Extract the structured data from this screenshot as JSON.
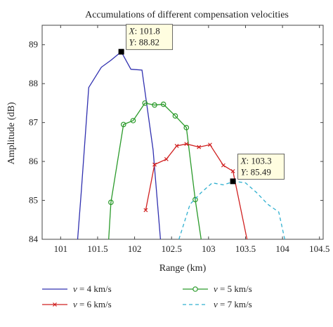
{
  "chart_data": {
    "type": "line",
    "title": "Accumulations of different compensation velocities",
    "xlabel": "Range (km)",
    "ylabel": "Amplitude (dB)",
    "xlim": [
      100.75,
      104.55
    ],
    "ylim": [
      84,
      89.5
    ],
    "xticks": [
      101,
      101.5,
      102,
      102.5,
      103,
      103.5,
      104,
      104.5
    ],
    "xtick_labels": [
      "101",
      "101.5",
      "102",
      "102.5",
      "103",
      "103.5",
      "104",
      "104.5"
    ],
    "yticks": [
      84,
      85,
      86,
      87,
      88,
      89
    ],
    "ytick_labels": [
      "84",
      "85",
      "86",
      "87",
      "88",
      "89"
    ],
    "grid": false,
    "legend_position": "bottom",
    "series": [
      {
        "name": "v = 4 km/s",
        "name_var": "v",
        "name_rest": " = 4 km/s",
        "color": "#3030b0",
        "marker": "none",
        "dash": "solid",
        "x": [
          101.23,
          101.28,
          101.38,
          101.55,
          101.68,
          101.82,
          101.95,
          102.1,
          102.25,
          102.35
        ],
        "y": [
          84.0,
          85.25,
          87.9,
          88.42,
          88.6,
          88.82,
          88.37,
          88.35,
          86.3,
          84.0
        ]
      },
      {
        "name": "v = 5 km/s",
        "name_var": "v",
        "name_rest": " = 5 km/s",
        "color": "#2a9a2a",
        "marker": "circle",
        "dash": "solid",
        "x": [
          101.65,
          101.68,
          101.85,
          101.98,
          102.14,
          102.27,
          102.39,
          102.55,
          102.7,
          102.82,
          102.9
        ],
        "y": [
          84.0,
          84.95,
          86.95,
          87.05,
          87.5,
          87.45,
          87.47,
          87.17,
          86.87,
          85.02,
          84.0
        ],
        "marker_x": [
          101.68,
          101.85,
          101.98,
          102.14,
          102.27,
          102.39,
          102.55,
          102.7,
          102.82
        ],
        "marker_y": [
          84.95,
          86.95,
          87.05,
          87.5,
          87.45,
          87.47,
          87.17,
          86.87,
          85.02
        ]
      },
      {
        "name": "v = 6 km/s",
        "name_var": "v",
        "name_rest": " = 6 km/s",
        "color": "#d02020",
        "marker": "x",
        "dash": "solid",
        "x": [
          102.15,
          102.27,
          102.43,
          102.57,
          102.7,
          102.87,
          103.02,
          103.2,
          103.33,
          103.52
        ],
        "y": [
          84.75,
          85.92,
          86.06,
          86.4,
          86.45,
          86.37,
          86.43,
          85.9,
          85.75,
          84.0
        ],
        "marker_x": [
          102.15,
          102.27,
          102.43,
          102.57,
          102.7,
          102.87,
          103.02,
          103.2,
          103.33
        ],
        "marker_y": [
          84.75,
          85.92,
          86.06,
          86.4,
          86.45,
          86.37,
          86.43,
          85.9,
          85.75
        ]
      },
      {
        "name": "v = 7 km/s",
        "name_var": "v",
        "name_rest": " = 7 km/s",
        "color": "#30b0d0",
        "marker": "none",
        "dash": "dashed",
        "x": [
          102.6,
          102.75,
          102.9,
          103.05,
          103.2,
          103.35,
          103.5,
          103.65,
          103.8,
          103.95,
          104.03
        ],
        "y": [
          84.0,
          84.9,
          85.2,
          85.45,
          85.4,
          85.49,
          85.45,
          85.2,
          84.9,
          84.7,
          84.0
        ]
      }
    ],
    "annotations": [
      {
        "x": 101.82,
        "y": 88.82,
        "line1_label": "X",
        "line1_value": ": 101.8",
        "line2_label": "Y",
        "line2_value": ": 88.82"
      },
      {
        "x": 103.33,
        "y": 85.49,
        "line1_label": "X",
        "line1_value": ": 103.3",
        "line2_label": "Y",
        "line2_value": ": 85.49"
      }
    ]
  }
}
